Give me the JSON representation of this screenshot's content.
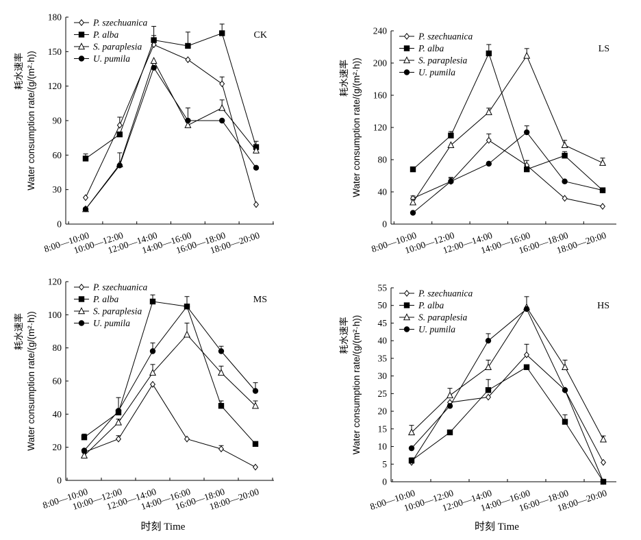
{
  "chart_data": [
    {
      "type": "line",
      "panel_label": "CK",
      "ylabel_cn": "耗水速率",
      "ylabel": "Water consumption rate/(g/(m²·h))",
      "xlabel": "",
      "categories": [
        "8:00—10:00",
        "10:00—12:00",
        "12:00—14:00",
        "14:00—16:00",
        "16:00—18:00",
        "18:00—20:00"
      ],
      "ylim": [
        0,
        180
      ],
      "yticks": [
        "0",
        "30",
        "60",
        "90",
        "120",
        "150",
        "180"
      ],
      "legend_position": "top-left",
      "series": [
        {
          "name": "P. szechuanica",
          "marker": "diamond-open",
          "values": [
            23,
            86,
            156,
            143,
            122,
            17
          ],
          "errors": [
            0,
            7,
            8,
            0,
            6,
            0
          ]
        },
        {
          "name": "P. alba",
          "marker": "square-filled",
          "values": [
            57,
            78,
            160,
            155,
            166,
            67
          ],
          "errors": [
            4,
            0,
            12,
            12,
            8,
            5
          ]
        },
        {
          "name": "S. paraplesia",
          "marker": "triangle-open",
          "values": [
            13,
            52,
            142,
            86,
            101,
            64
          ],
          "errors": [
            0,
            10,
            0,
            0,
            7,
            0
          ]
        },
        {
          "name": "U. pumila",
          "marker": "circle-filled",
          "values": [
            13,
            51,
            136,
            90,
            90,
            49
          ],
          "errors": [
            0,
            0,
            0,
            11,
            0,
            0
          ]
        }
      ]
    },
    {
      "type": "line",
      "panel_label": "LS",
      "ylabel_cn": "耗水速率",
      "ylabel": "Water consumption rate/(g/(m²·h))",
      "xlabel": "",
      "categories": [
        "8:00—10:00",
        "10:00—12:00",
        "12:00—14:00",
        "14:00—16:00",
        "16:00—18:00",
        "18:00—20:00"
      ],
      "ylim": [
        0,
        240
      ],
      "yticks": [
        "0",
        "40",
        "80",
        "120",
        "160",
        "200",
        "240"
      ],
      "legend_position": "top-left",
      "series": [
        {
          "name": "P. szechuanica",
          "marker": "diamond-open",
          "values": [
            32,
            53,
            104,
            73,
            32,
            22
          ],
          "errors": [
            3,
            5,
            8,
            6,
            0,
            0
          ]
        },
        {
          "name": "P. alba",
          "marker": "square-filled",
          "values": [
            68,
            110,
            212,
            68,
            85,
            42
          ],
          "errors": [
            0,
            5,
            11,
            0,
            5,
            0
          ]
        },
        {
          "name": "S. paraplesia",
          "marker": "triangle-open",
          "values": [
            27,
            98,
            139,
            209,
            98,
            76
          ],
          "errors": [
            3,
            0,
            5,
            9,
            6,
            6
          ]
        },
        {
          "name": "U. pumila",
          "marker": "circle-filled",
          "values": [
            14,
            53,
            75,
            114,
            53,
            42
          ],
          "errors": [
            0,
            4,
            0,
            8,
            0,
            0
          ]
        }
      ]
    },
    {
      "type": "line",
      "panel_label": "MS",
      "ylabel_cn": "耗水速率",
      "ylabel": "Water consumption rate/(g/(m²·h))",
      "xlabel": "时刻 Time",
      "categories": [
        "8:00—10:00",
        "10:00—12:00",
        "12:00—14:00",
        "14:00—16:00",
        "16:00—18:00",
        "18:00—20:00"
      ],
      "ylim": [
        0,
        120
      ],
      "yticks": [
        "0",
        "20",
        "40",
        "60",
        "80",
        "100",
        "120"
      ],
      "legend_position": "top-left",
      "series": [
        {
          "name": "P. szechuanica",
          "marker": "diamond-open",
          "values": [
            17,
            25,
            58,
            25,
            19,
            8
          ],
          "errors": [
            0,
            2,
            0,
            0,
            2,
            0
          ]
        },
        {
          "name": "P. alba",
          "marker": "square-filled",
          "values": [
            26,
            41,
            108,
            105,
            45,
            22
          ],
          "errors": [
            2,
            9,
            4,
            6,
            3,
            0
          ]
        },
        {
          "name": "S. paraplesia",
          "marker": "triangle-open",
          "values": [
            15,
            35,
            65,
            88,
            65,
            45
          ],
          "errors": [
            0,
            2,
            5,
            7,
            4,
            3
          ]
        },
        {
          "name": "U. pumila",
          "marker": "circle-filled",
          "values": [
            18,
            42,
            78,
            105,
            78,
            54
          ],
          "errors": [
            0,
            0,
            5,
            0,
            3,
            5
          ]
        }
      ]
    },
    {
      "type": "line",
      "panel_label": "HS",
      "ylabel_cn": "耗水速率",
      "ylabel": "Water consumption rate/(g/(m²·h))",
      "xlabel": "时刻 Time",
      "categories": [
        "8:00—10:00",
        "10:00—12:00",
        "12:00—14:00",
        "14:00—16:00",
        "16:00—18:00",
        "18:00—20:00"
      ],
      "ylim": [
        0,
        55
      ],
      "yticks": [
        "0",
        "5",
        "10",
        "15",
        "20",
        "25",
        "30",
        "35",
        "40",
        "45",
        "50",
        "55"
      ],
      "legend_position": "top-left",
      "series": [
        {
          "name": "P. szechuanica",
          "marker": "diamond-open",
          "values": [
            5.5,
            22.5,
            24,
            36,
            26,
            5.5
          ],
          "errors": [
            0.5,
            0,
            0,
            3,
            0,
            0
          ]
        },
        {
          "name": "P. alba",
          "marker": "square-filled",
          "values": [
            6,
            14,
            26,
            32.5,
            17,
            0
          ],
          "errors": [
            0.8,
            0,
            3,
            0,
            2,
            0
          ]
        },
        {
          "name": "S. paraplesia",
          "marker": "triangle-open",
          "values": [
            14,
            24.5,
            32.5,
            49.5,
            32.5,
            12
          ],
          "errors": [
            2,
            2,
            2,
            3,
            2,
            1
          ]
        },
        {
          "name": "U. pumila",
          "marker": "circle-filled",
          "values": [
            9.5,
            21.5,
            40,
            49,
            26,
            0
          ],
          "errors": [
            0,
            0,
            2,
            0,
            0,
            0
          ]
        }
      ]
    }
  ]
}
